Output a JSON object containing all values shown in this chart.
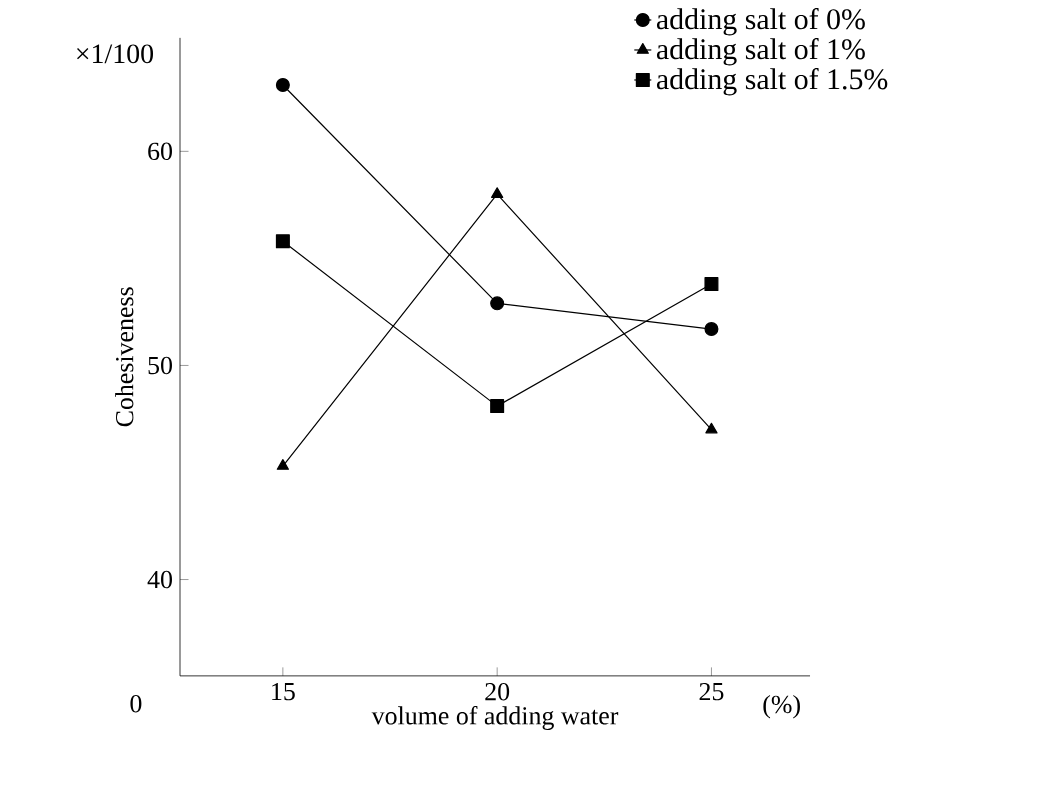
{
  "chart_data": {
    "type": "line",
    "xlabel": "volume of adding water",
    "ylabel": "Cohesiveness",
    "x": [
      15,
      20,
      25
    ],
    "xlim": [
      12.6,
      27.3
    ],
    "xticks": [
      15,
      20,
      25
    ],
    "ylim": [
      35.5,
      65.3
    ],
    "yticks": [
      40,
      50,
      60
    ],
    "series": [
      {
        "name": "adding salt of 0%",
        "color": "#000000",
        "marker": "circle",
        "values": [
          63.1,
          52.9,
          51.7
        ]
      },
      {
        "name": "adding salt of 1%",
        "color": "#000000",
        "marker": "triangle",
        "values": [
          45.3,
          58.0,
          47.0
        ]
      },
      {
        "name": "adding salt of 1.5%",
        "color": "#000000",
        "marker": "square",
        "values": [
          55.8,
          48.1,
          53.8
        ]
      }
    ],
    "legend": "top right",
    "grid": false,
    "line_style": "solid",
    "annotations": [
      "×1/100",
      "0",
      "(%)"
    ]
  }
}
